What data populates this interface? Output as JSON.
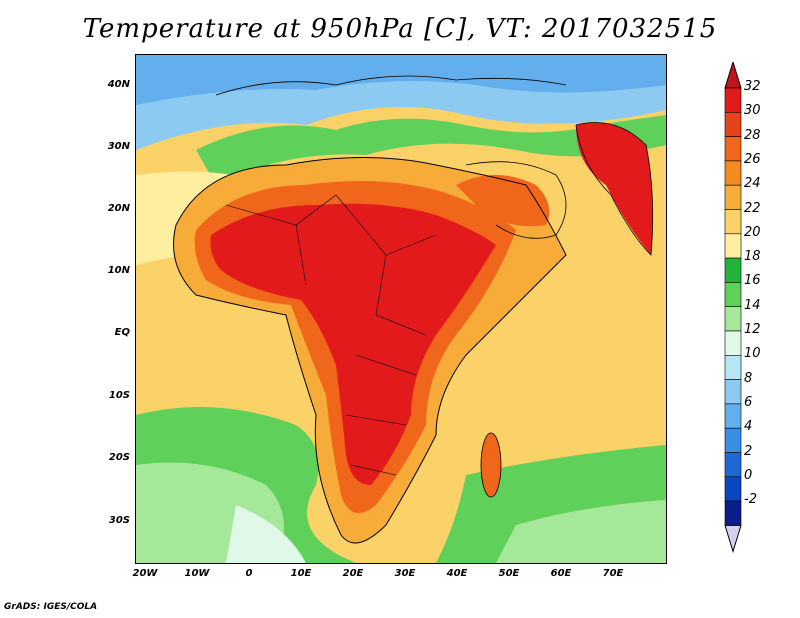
{
  "title": "Temperature at 950hPa [C], VT: 2017032515",
  "credit": "GrADS: IGES/COLA",
  "map": {
    "lat_ticks": [
      "40N",
      "30N",
      "20N",
      "10N",
      "EQ",
      "10S",
      "20S",
      "30S"
    ],
    "lon_ticks": [
      "20W",
      "10W",
      "0",
      "10E",
      "20E",
      "30E",
      "40E",
      "50E",
      "60E",
      "70E"
    ]
  },
  "colorbar": {
    "labels": [
      "32",
      "30",
      "28",
      "26",
      "24",
      "22",
      "20",
      "18",
      "16",
      "14",
      "12",
      "10",
      "8",
      "6",
      "4",
      "2",
      "0",
      "-2"
    ],
    "colors": [
      "#e31a1c",
      "#e8421a",
      "#f0661a",
      "#f58a20",
      "#f7ac3a",
      "#fbd268",
      "#fdeea0",
      "#22b43a",
      "#5fd05a",
      "#a6e89a",
      "#e0f8e8",
      "#b6e6f6",
      "#8ccaf2",
      "#63aeed",
      "#3a8ee6",
      "#1e68d6",
      "#0b46c2",
      "#0a1e8c"
    ],
    "top_arrow_color": "#c0141a",
    "bottom_arrow_color": "#d8d0f0"
  }
}
